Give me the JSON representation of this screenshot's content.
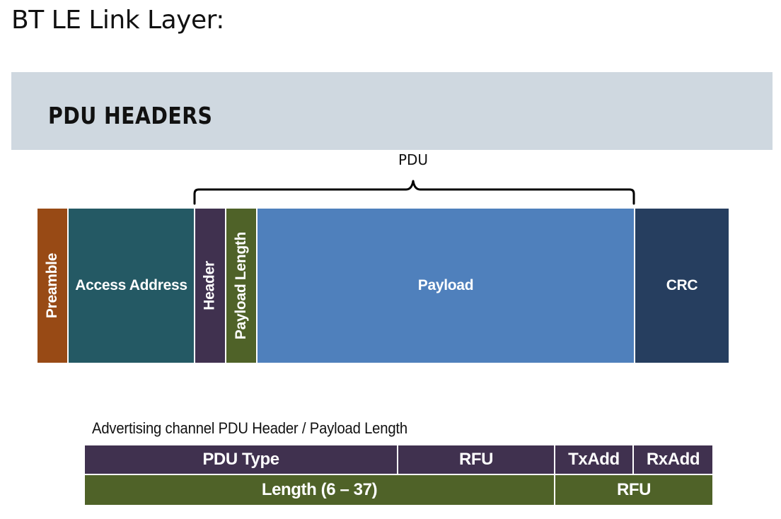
{
  "page": {
    "title": "BT LE Link Layer:"
  },
  "banner": {
    "title": "PDU HEADERS"
  },
  "packet": {
    "pdu_label": "PDU",
    "fields": [
      {
        "name": "preamble",
        "label": "Preamble",
        "color": "#984a15",
        "vertical": true
      },
      {
        "name": "access-address",
        "label": "Access Address",
        "color": "#245964",
        "vertical": false
      },
      {
        "name": "header",
        "label": "Header",
        "color": "#40314f",
        "vertical": true
      },
      {
        "name": "payload-length",
        "label": "Payload Length",
        "color": "#4f6228",
        "vertical": true
      },
      {
        "name": "payload",
        "label": "Payload",
        "color": "#4f80bc",
        "vertical": false
      },
      {
        "name": "crc",
        "label": "CRC",
        "color": "#263e5f",
        "vertical": false
      }
    ]
  },
  "advertising_header": {
    "caption": "Advertising channel PDU Header / Payload Length",
    "row1": {
      "pdu_type": "PDU Type",
      "rfu": "RFU",
      "txadd": "TxAdd",
      "rxadd": "RxAdd",
      "color": "#40314f"
    },
    "row2": {
      "length": "Length (6 – 37)",
      "rfu": "RFU",
      "color": "#4f6228"
    }
  }
}
